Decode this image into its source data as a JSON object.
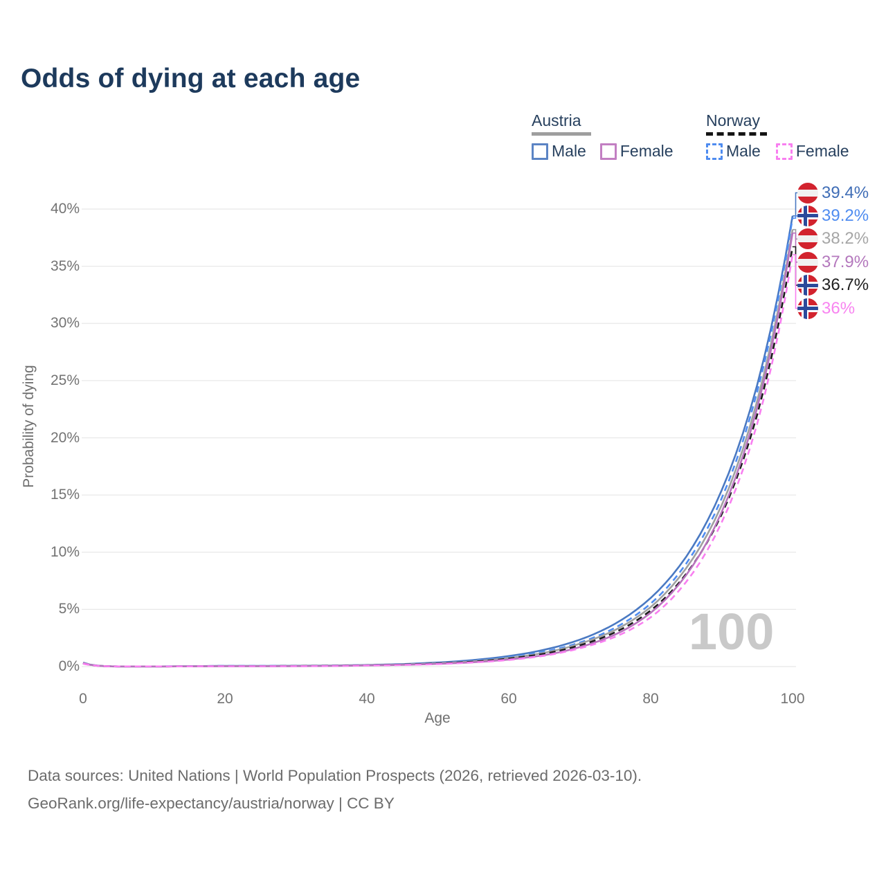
{
  "title": "Odds of dying at each age",
  "legend": {
    "groups": [
      {
        "country": "Austria",
        "style": "solid",
        "items": [
          {
            "label": "Male"
          },
          {
            "label": "Female"
          }
        ]
      },
      {
        "country": "Norway",
        "style": "dashed",
        "items": [
          {
            "label": "Male"
          },
          {
            "label": "Female"
          }
        ]
      }
    ]
  },
  "colors": {
    "title_text": "#1d3a5c",
    "legend_text": "#27405e",
    "axis_text": "#737373",
    "grid": "#e8e8e8",
    "watermark": "#c9c9c9",
    "austria_underline": "#9e9e9e",
    "norway_underline": "#151515",
    "flag_red": "#d2232e",
    "flag_blue": "#2b4a9b"
  },
  "chart_data": {
    "type": "line",
    "title": "Odds of dying at each age",
    "xlabel": "Age",
    "ylabel": "Probability of dying",
    "xlim": [
      0,
      100
    ],
    "ylim": [
      0,
      40
    ],
    "x_ticks": [
      0,
      20,
      40,
      60,
      80,
      100
    ],
    "y_ticks": [
      0,
      5,
      10,
      15,
      20,
      25,
      30,
      35,
      40
    ],
    "y_tick_suffix": "%",
    "grid": "horizontal",
    "legend_position": "top-right",
    "watermark": "100",
    "x": [
      0,
      5,
      10,
      15,
      20,
      25,
      30,
      35,
      40,
      45,
      50,
      55,
      60,
      65,
      70,
      75,
      80,
      85,
      90,
      95,
      100
    ],
    "series": [
      {
        "id": "austria-male",
        "name": "Austria Male",
        "country": "Austria",
        "sex": "Male",
        "dash": "solid",
        "color": "#4a79c2",
        "label_color": "#3f6db6",
        "end_label": "39.4%",
        "values": [
          0.35,
          0.01,
          0.01,
          0.03,
          0.06,
          0.06,
          0.07,
          0.09,
          0.14,
          0.22,
          0.36,
          0.57,
          0.92,
          1.47,
          2.35,
          3.75,
          6.0,
          9.6,
          15.4,
          24.6,
          39.4
        ]
      },
      {
        "id": "norway-male",
        "name": "Norway Male",
        "country": "Norway",
        "sex": "Male",
        "dash": "dashed",
        "color": "#4f8cf0",
        "label_color": "#4f8cf0",
        "end_label": "39.2%",
        "values": [
          0.3,
          0.01,
          0.01,
          0.03,
          0.06,
          0.06,
          0.06,
          0.08,
          0.13,
          0.2,
          0.32,
          0.51,
          0.82,
          1.3,
          2.1,
          3.4,
          5.5,
          9.0,
          14.7,
          24.0,
          39.2
        ]
      },
      {
        "id": "austria-total",
        "name": "Austria",
        "country": "Austria",
        "sex": "Both",
        "dash": "solid",
        "color": "#a0a0a0",
        "label_color": "#a6a6a6",
        "end_label": "38.2%",
        "values": [
          0.32,
          0.01,
          0.01,
          0.02,
          0.04,
          0.04,
          0.05,
          0.07,
          0.12,
          0.18,
          0.29,
          0.46,
          0.75,
          1.2,
          2.0,
          3.2,
          5.2,
          8.6,
          14.1,
          23.2,
          38.2
        ]
      },
      {
        "id": "norway-total",
        "name": "Norway",
        "country": "Norway",
        "sex": "Both",
        "dash": "dashed",
        "color": "#1b1b1b",
        "label_color": "#1f1f1f",
        "end_label": "36.7%",
        "values": [
          0.27,
          0.01,
          0.01,
          0.02,
          0.04,
          0.04,
          0.05,
          0.07,
          0.11,
          0.17,
          0.27,
          0.43,
          0.7,
          1.12,
          1.85,
          3.0,
          4.9,
          8.1,
          13.3,
          22.0,
          36.7
        ]
      },
      {
        "id": "austria-female",
        "name": "Austria Female",
        "country": "Austria",
        "sex": "Female",
        "dash": "solid",
        "color": "#b873bd",
        "label_color": "#b478bd",
        "end_label": "37.9%",
        "values": [
          0.3,
          0.01,
          0.01,
          0.02,
          0.03,
          0.03,
          0.04,
          0.06,
          0.1,
          0.15,
          0.24,
          0.38,
          0.62,
          1.0,
          1.7,
          2.8,
          4.7,
          8.0,
          13.5,
          22.6,
          37.9
        ]
      },
      {
        "id": "norway-female",
        "name": "Norway Female",
        "country": "Norway",
        "sex": "Female",
        "dash": "dashed",
        "color": "#f87ff0",
        "label_color": "#f884f0",
        "end_label": "36%",
        "values": [
          0.25,
          0.01,
          0.01,
          0.02,
          0.03,
          0.03,
          0.03,
          0.05,
          0.09,
          0.14,
          0.22,
          0.36,
          0.58,
          0.95,
          1.6,
          2.6,
          4.3,
          7.4,
          12.6,
          21.2,
          36.0
        ]
      }
    ]
  },
  "footer": {
    "line1": "Data sources: United Nations | World Population Prospects (2026, retrieved 2026-03-10).",
    "line2": "GeoRank.org/life-expectancy/austria/norway | CC BY"
  }
}
